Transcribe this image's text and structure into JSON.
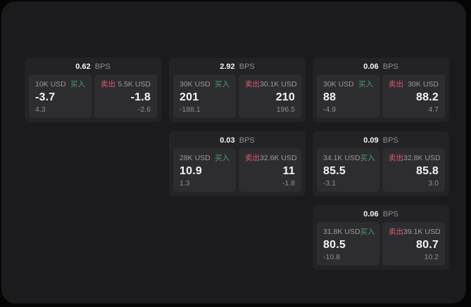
{
  "colors": {
    "buy": "#4b9e6d",
    "sell": "#d9596f",
    "panel_bg": "#1b1b1d",
    "card_bg": "#232326",
    "tile_bg": "#2d2d30"
  },
  "cards": [
    {
      "grid": {
        "row": 0,
        "col": 0
      },
      "bps_value": "0.62",
      "bps_unit": "BPS",
      "buy": {
        "size": "10K USD",
        "side_label": "买入",
        "price": "-3.7",
        "delta": "4.3"
      },
      "sell": {
        "side_label": "卖出",
        "size": "5.5K USD",
        "price": "-1.8",
        "delta": "-2.6"
      }
    },
    {
      "grid": {
        "row": 0,
        "col": 1
      },
      "bps_value": "2.92",
      "bps_unit": "BPS",
      "buy": {
        "size": "30K USD",
        "side_label": "买入",
        "price": "201",
        "delta": "-188.1"
      },
      "sell": {
        "side_label": "卖出",
        "size": "30.1K USD",
        "price": "210",
        "delta": "196.5"
      }
    },
    {
      "grid": {
        "row": 0,
        "col": 2
      },
      "bps_value": "0.06",
      "bps_unit": "BPS",
      "buy": {
        "size": "30K USD",
        "side_label": "买入",
        "price": "88",
        "delta": "-4.9"
      },
      "sell": {
        "side_label": "卖出",
        "size": "30K USD",
        "price": "88.2",
        "delta": "4.7"
      }
    },
    {
      "grid": {
        "row": 1,
        "col": 1
      },
      "bps_value": "0.03",
      "bps_unit": "BPS",
      "buy": {
        "size": "28K USD",
        "side_label": "买入",
        "price": "10.9",
        "delta": "1.3"
      },
      "sell": {
        "side_label": "卖出",
        "size": "32.6K USD",
        "price": "11",
        "delta": "-1.8"
      }
    },
    {
      "grid": {
        "row": 1,
        "col": 2
      },
      "bps_value": "0.09",
      "bps_unit": "BPS",
      "buy": {
        "size": "34.1K USD",
        "side_label": "买入",
        "price": "85.5",
        "delta": "-3.1"
      },
      "sell": {
        "side_label": "卖出",
        "size": "32.8K USD",
        "price": "85.8",
        "delta": "3.0"
      }
    },
    {
      "grid": {
        "row": 2,
        "col": 2
      },
      "bps_value": "0.06",
      "bps_unit": "BPS",
      "buy": {
        "size": "31.8K USD",
        "side_label": "买入",
        "price": "80.5",
        "delta": "-10.8"
      },
      "sell": {
        "side_label": "卖出",
        "size": "39.1K USD",
        "price": "80.7",
        "delta": "10.2"
      }
    }
  ]
}
